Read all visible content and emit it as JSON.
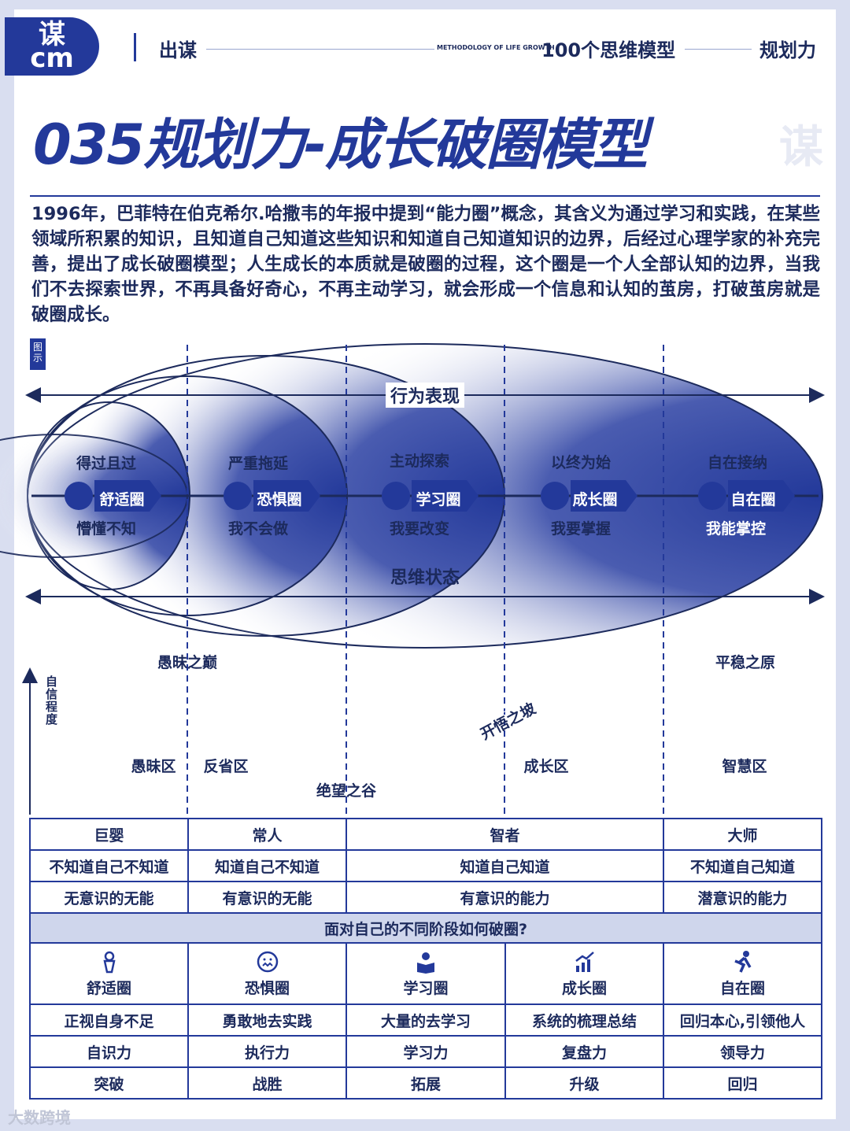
{
  "header": {
    "logo": "谋\ncm",
    "left": "出谋",
    "methodology": "METHODOLOGY OF LIFE GROWTH",
    "series": "100个思维模型",
    "category": "规划力"
  },
  "title": "035规划力-成长破圈模型",
  "watermark": "谋",
  "intro": "1996年，巴菲特在伯克希尔.哈撒韦的年报中提到“能力圈”概念，其含义为通过学习和实践，在某些领域所积累的知识，且知道自己知道这些知识和知道自己知道知识的边界，后经过心理学家的补充完善，提出了成长破圈模型；人生成长的本质就是破圈的过程，这个圈是一个人全部认知的边界，当我们不去探索世界，不再具备好奇心，不再主动学习，就会形成一个信息和认知的茧房，打破茧房就是破圈成长。",
  "tag": "图示",
  "diagram": {
    "behavior": "行为表现",
    "mind": "思维状态",
    "circles": [
      {
        "top": "得过且过",
        "name": "舒适圈",
        "bottom": "懵懂不知",
        "icon": "person-icon"
      },
      {
        "top": "严重拖延",
        "name": "恐惧圈",
        "bottom": "我不会做",
        "icon": "scared-face-icon"
      },
      {
        "top": "主动探索",
        "name": "学习圈",
        "bottom": "我要改变",
        "icon": "reading-icon"
      },
      {
        "top": "以终为始",
        "name": "成长圈",
        "bottom": "我要掌握",
        "icon": "growth-chart-icon"
      },
      {
        "top": "自在接纳",
        "name": "自在圈",
        "bottom": "我能掌控",
        "icon": "running-icon"
      }
    ]
  },
  "curve": {
    "axis": "自信程度",
    "peak": "愚昧之巅",
    "plateau": "平稳之原",
    "slope": "开悟之坡",
    "valley": "绝望之谷",
    "zones": [
      "愚昧区",
      "反省区",
      "成长区",
      "智慧区"
    ]
  },
  "table": {
    "roles": [
      "巨婴",
      "常人",
      "智者",
      "大师"
    ],
    "know": [
      "不知道自己不知道",
      "知道自己不知道",
      "知道自己知道",
      "不知道自己知道"
    ],
    "ability": [
      "无意识的无能",
      "有意识的无能",
      "有意识的能力",
      "潜意识的能力"
    ],
    "question": "面对自己的不同阶段如何破圈?",
    "circles": [
      "舒适圈",
      "恐惧圈",
      "学习圈",
      "成长圈",
      "自在圈"
    ],
    "actions": [
      "正视自身不足",
      "勇敢地去实践",
      "大量的去学习",
      "系统的梳理总结",
      "回归本心,引领他人"
    ],
    "skills": [
      "自识力",
      "执行力",
      "学习力",
      "复盘力",
      "领导力"
    ],
    "results": [
      "突破",
      "战胜",
      "拓展",
      "升级",
      "回归"
    ]
  },
  "footer": "大数跨境",
  "colors": {
    "primary": "#23399a",
    "dark": "#1c2a5c",
    "light": "#cfd6ec"
  }
}
